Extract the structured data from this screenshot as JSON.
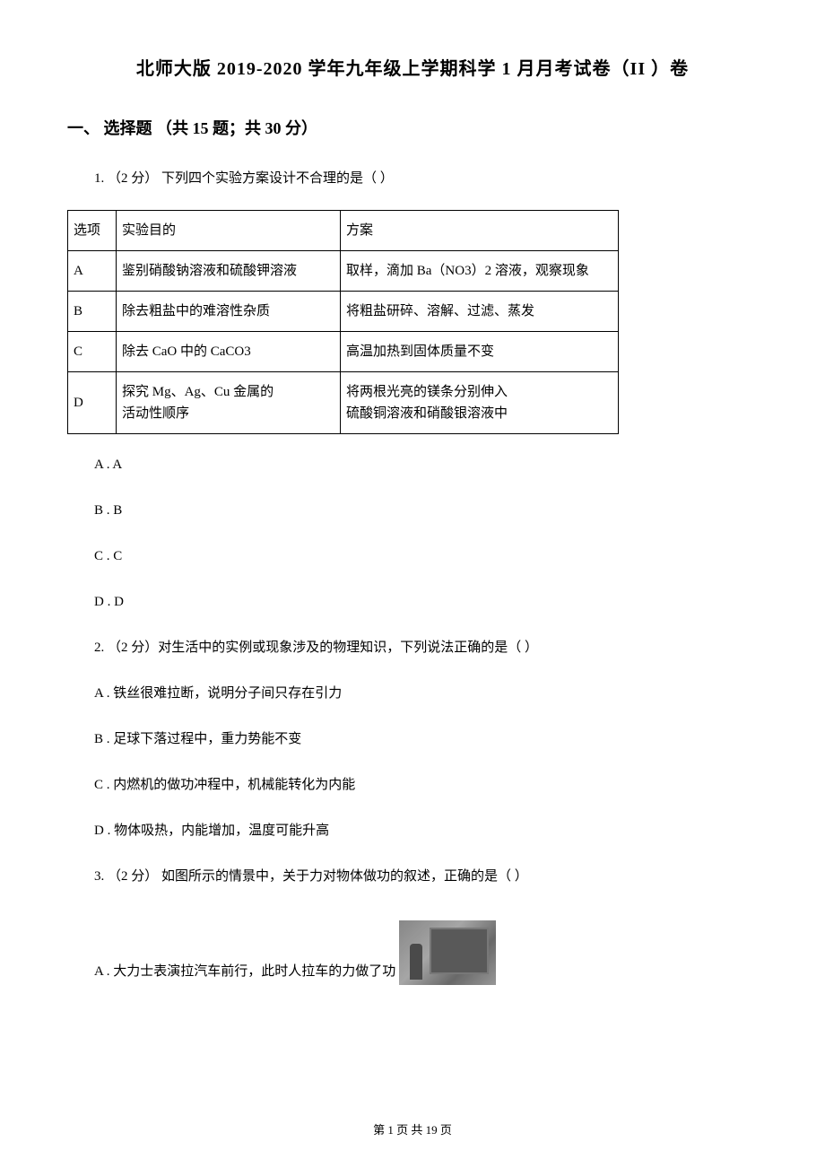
{
  "doc": {
    "title": "北师大版 2019-2020 学年九年级上学期科学 1 月月考试卷（II ）卷",
    "section1": "一、 选择题 （共 15 题；共 30 分）",
    "footer": "第 1 页 共 19 页"
  },
  "q1": {
    "stem": "1.  （2 分）  下列四个实验方案设计不合理的是（     ）",
    "table": {
      "header": {
        "c1": "选项",
        "c2": "实验目的",
        "c3": "方案"
      },
      "rows": [
        {
          "c1": "A",
          "c2": "鉴别硝酸钠溶液和硫酸钾溶液",
          "c3": "取样，滴加 Ba（NO3）2 溶液，观察现象"
        },
        {
          "c1": "B",
          "c2": "除去粗盐中的难溶性杂质",
          "c3": "将粗盐研碎、溶解、过滤、蒸发"
        },
        {
          "c1": "C",
          "c2": "除去 CaO 中的 CaCO3",
          "c3": "高温加热到固体质量不变"
        },
        {
          "c1": "D",
          "c2_line1": "探究 Mg、Ag、Cu 金属的",
          "c2_line2": "活动性顺序",
          "c3_line1": "将两根光亮的镁条分别伸入",
          "c3_line2": "硫酸铜溶液和硝酸银溶液中"
        }
      ]
    },
    "opts": {
      "a": "A . A",
      "b": "B . B",
      "c": "C . C",
      "d": "D . D"
    }
  },
  "q2": {
    "stem": "2.  （2 分）对生活中的实例或现象涉及的物理知识，下列说法正确的是（     ）",
    "opts": {
      "a": "A . 铁丝很难拉断，说明分子间只存在引力",
      "b": "B . 足球下落过程中，重力势能不变",
      "c": "C . 内燃机的做功冲程中，机械能转化为内能",
      "d": "D . 物体吸热，内能增加，温度可能升高"
    }
  },
  "q3": {
    "stem": "3.  （2 分）  如图所示的情景中，关于力对物体做功的叙述，正确的是（     ）",
    "opts": {
      "a": "A . 大力士表演拉汽车前行，此时人拉车的力做了功"
    }
  }
}
